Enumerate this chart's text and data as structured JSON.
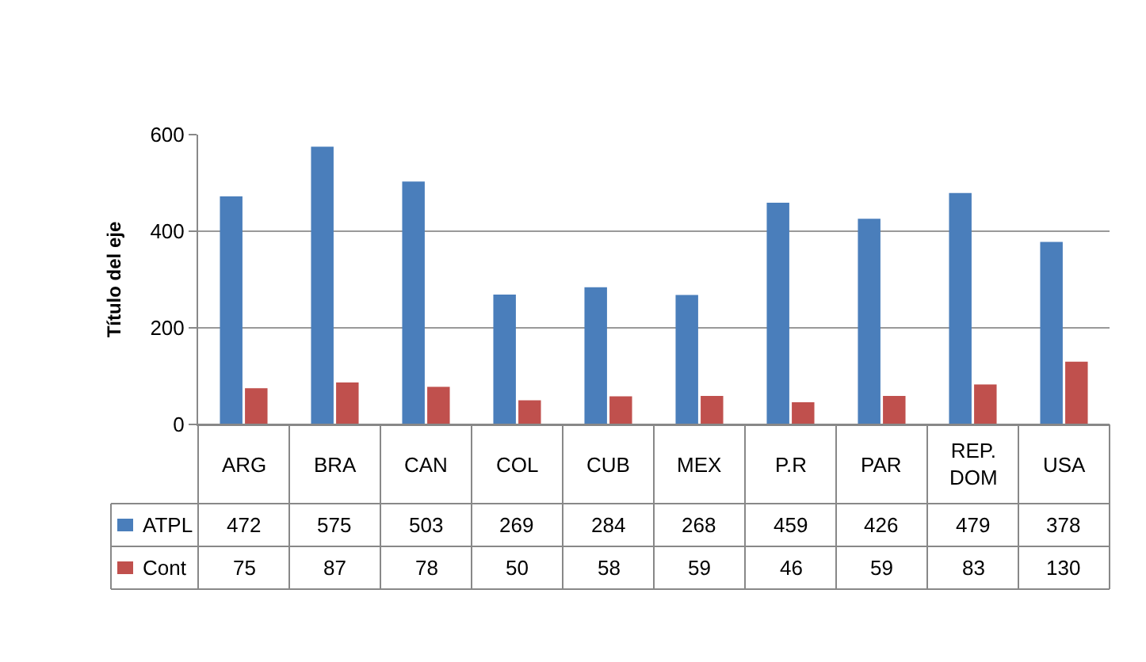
{
  "chart_data": {
    "type": "bar",
    "ylabel": "Título del eje",
    "categories": [
      "ARG",
      "BRA",
      "CAN",
      "COL",
      "CUB",
      "MEX",
      "P.R",
      "PAR",
      "REP. DOM",
      "USA"
    ],
    "series": [
      {
        "name": "ATPL",
        "color": "#4a7ebb",
        "values": [
          472,
          575,
          503,
          269,
          284,
          268,
          459,
          426,
          479,
          378
        ]
      },
      {
        "name": "Cont",
        "color": "#c0504d",
        "values": [
          75,
          87,
          78,
          50,
          58,
          59,
          46,
          59,
          83,
          130
        ]
      }
    ],
    "ylim": [
      0,
      600
    ],
    "yticks": [
      0,
      200,
      400,
      600
    ],
    "grid": "y",
    "legend": "bottom",
    "data_labels": true
  }
}
